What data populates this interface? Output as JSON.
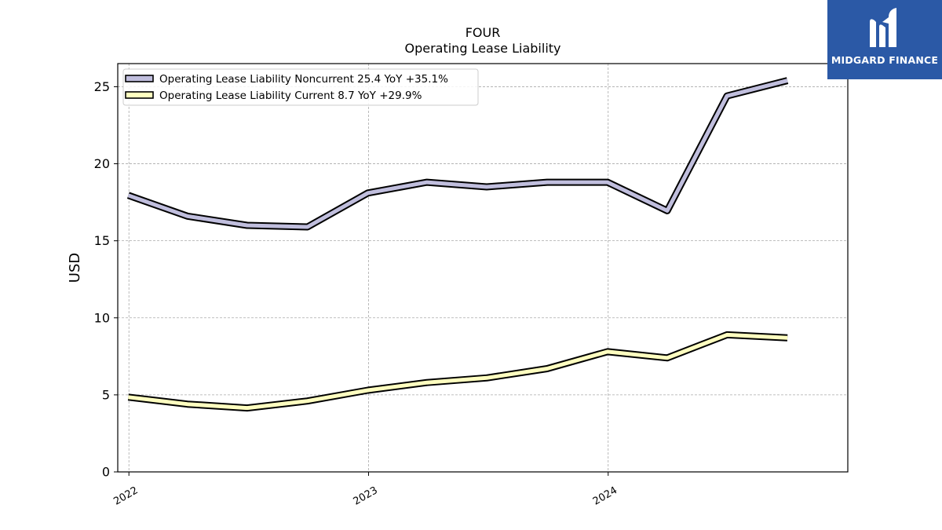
{
  "chart_data": {
    "type": "line",
    "title": "FOUR",
    "subtitle": "Operating Lease Liability",
    "ylabel": "USD",
    "xlabel": "",
    "ylim": [
      0,
      26.5
    ],
    "yticks": [
      0,
      5,
      10,
      15,
      20,
      25
    ],
    "xlim": [
      "2021-12-15",
      "2024-12-31"
    ],
    "xticks": [
      "2022",
      "2023",
      "2024"
    ],
    "grid": true,
    "legend_position": "top-left",
    "x": [
      "2021-12-31",
      "2022-03-31",
      "2022-06-30",
      "2022-09-30",
      "2022-12-31",
      "2023-03-31",
      "2023-06-30",
      "2023-09-30",
      "2023-12-31",
      "2024-03-31",
      "2024-06-30",
      "2024-09-30"
    ],
    "series": [
      {
        "name": "Operating Lease Liability Noncurrent",
        "legend": "Operating Lease Liability Noncurrent  25.4 YoY +35.1%",
        "color": "#c0bedd",
        "values": [
          17.95,
          16.6,
          16.0,
          15.9,
          18.1,
          18.8,
          18.5,
          18.8,
          18.8,
          16.95,
          24.4,
          25.4
        ]
      },
      {
        "name": "Operating Lease Liability Current",
        "legend": "Operating Lease Liability Current  8.7 YoY +29.9%",
        "color": "#ffffc0",
        "values": [
          4.85,
          4.4,
          4.15,
          4.6,
          5.3,
          5.8,
          6.1,
          6.7,
          7.8,
          7.4,
          8.9,
          8.7
        ]
      }
    ]
  },
  "branding": {
    "logo_text": "MIDGARD FINANCE",
    "logo_color": "#2b59a6"
  }
}
